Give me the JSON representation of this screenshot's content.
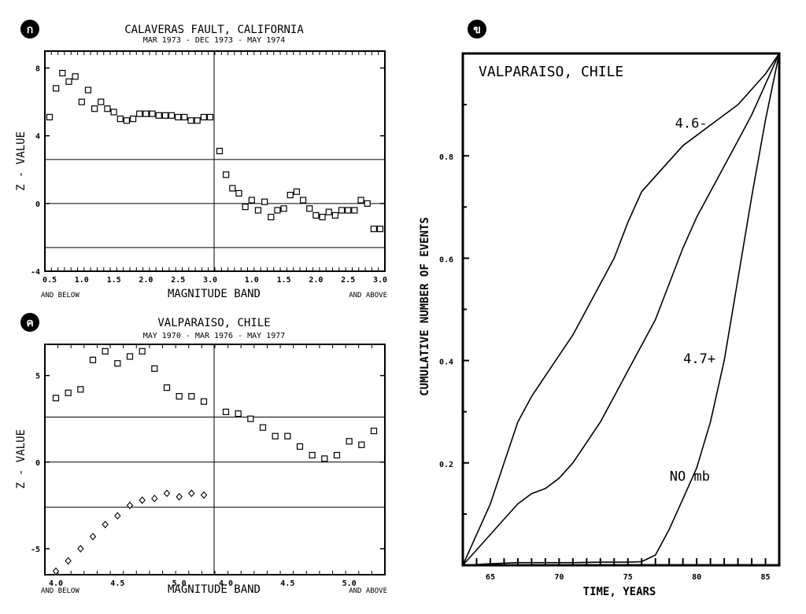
{
  "figure": {
    "panels": [
      {
        "badge": "ก",
        "title": "CALAVERAS FAULT, CALIFORNIA",
        "subtitle": "MAR 1973 - DEC 1973 - MAY 1974",
        "ylabel": "Z - VALUE",
        "xlabel": "MAGNITUDE BAND",
        "note_left": "AND BELOW",
        "note_right": "AND ABOVE"
      },
      {
        "badge": "ค",
        "title": "VALPARAISO, CHILE",
        "subtitle": "MAY 1970 - MAR 1976 - MAY 1977",
        "ylabel": "Z - VALUE",
        "xlabel": "MAGNITUDE BAND",
        "note_left": "AND BELOW",
        "note_right": "AND ABOVE"
      },
      {
        "badge": "ข",
        "title": "VALPARAISO, CHILE",
        "ylabel": "CUMULATIVE NUMBER OF EVENTS",
        "xlabel": "TIME, YEARS"
      }
    ]
  },
  "chart_data": [
    {
      "type": "scatter",
      "panel": "ก",
      "title": "CALAVERAS FAULT, CALIFORNIA",
      "subtitle": "MAR 1973 - DEC 1973 - MAY 1974",
      "xlabel": "MAGNITUDE BAND",
      "ylabel": "Z - VALUE",
      "ylim": [
        -4,
        9
      ],
      "yticks": [
        -4,
        0,
        4,
        8
      ],
      "grid": false,
      "reference_lines_y": [
        2.6,
        0,
        -2.6
      ],
      "x_ticks_left": [
        "0.5",
        "1.0",
        "1.5",
        "2.0",
        "2.5",
        "3.0"
      ],
      "x_ticks_right": [
        "1.0",
        "1.5",
        "2.0",
        "2.5",
        "3.0"
      ],
      "left_note": "AND BELOW",
      "right_note": "AND ABOVE",
      "series": [
        {
          "marker": "square",
          "segment": "left",
          "x": [
            0.5,
            0.6,
            0.7,
            0.8,
            0.9,
            1.0,
            1.1,
            1.2,
            1.3,
            1.4,
            1.5,
            1.6,
            1.7,
            1.8,
            1.9,
            2.0,
            2.1,
            2.2,
            2.3,
            2.4,
            2.5,
            2.6,
            2.7,
            2.8,
            2.9,
            3.0
          ],
          "values": [
            5.1,
            6.8,
            7.7,
            7.2,
            7.5,
            6.0,
            6.7,
            5.6,
            6.0,
            5.6,
            5.4,
            5.0,
            4.9,
            5.0,
            5.3,
            5.3,
            5.3,
            5.2,
            5.2,
            5.2,
            5.1,
            5.1,
            4.9,
            4.9,
            5.1,
            5.1
          ]
        },
        {
          "marker": "square",
          "segment": "right",
          "x": [
            0.5,
            0.6,
            0.7,
            0.8,
            0.9,
            1.0,
            1.1,
            1.2,
            1.3,
            1.4,
            1.5,
            1.6,
            1.7,
            1.8,
            1.9,
            2.0,
            2.1,
            2.2,
            2.3,
            2.4,
            2.5,
            2.6,
            2.7,
            2.8,
            2.9,
            3.0
          ],
          "values": [
            3.1,
            1.7,
            0.9,
            0.6,
            -0.2,
            0.2,
            -0.4,
            0.1,
            -0.8,
            -0.4,
            -0.3,
            0.5,
            0.7,
            0.2,
            -0.3,
            -0.7,
            -0.8,
            -0.5,
            -0.7,
            -0.4,
            -0.4,
            -0.4,
            0.2,
            0.0,
            -1.5,
            -1.5
          ]
        }
      ]
    },
    {
      "type": "scatter",
      "panel": "ค",
      "title": "VALPARAISO, CHILE",
      "subtitle": "MAY 1970 - MAR 1976 - MAY 1977",
      "xlabel": "MAGNITUDE BAND",
      "ylabel": "Z - VALUE",
      "ylim": [
        -6.5,
        6.8
      ],
      "yticks": [
        -5,
        0,
        5
      ],
      "grid": false,
      "reference_lines_y": [
        2.6,
        0,
        -2.6
      ],
      "x_ticks_left": [
        "4.0",
        "4.5",
        "5.0"
      ],
      "x_ticks_right": [
        "4.0",
        "4.5",
        "5.0"
      ],
      "left_note": "AND BELOW",
      "right_note": "AND ABOVE",
      "series": [
        {
          "marker": "square",
          "segment": "left",
          "x": [
            4.0,
            4.1,
            4.2,
            4.3,
            4.4,
            4.5,
            4.6,
            4.7,
            4.8,
            4.9,
            5.0,
            5.1,
            5.2
          ],
          "values": [
            3.7,
            4.0,
            4.2,
            5.9,
            6.4,
            5.7,
            6.1,
            6.4,
            5.4,
            4.3,
            3.8,
            3.8,
            3.5
          ]
        },
        {
          "marker": "square",
          "segment": "right",
          "x": [
            4.0,
            4.1,
            4.2,
            4.3,
            4.4,
            4.5,
            4.6,
            4.7,
            4.8,
            4.9,
            5.0,
            5.1,
            5.2
          ],
          "values": [
            2.9,
            2.8,
            2.5,
            2.0,
            1.5,
            1.5,
            0.9,
            0.4,
            0.2,
            0.4,
            1.2,
            1.0,
            1.8
          ]
        },
        {
          "marker": "diamond",
          "segment": "left",
          "x": [
            4.0,
            4.1,
            4.2,
            4.3,
            4.4,
            4.5,
            4.6,
            4.7,
            4.8,
            4.9,
            5.0,
            5.1,
            5.2
          ],
          "values": [
            -6.3,
            -5.7,
            -5.0,
            -4.3,
            -3.6,
            -3.1,
            -2.5,
            -2.2,
            -2.1,
            -1.8,
            -2.0,
            -1.8,
            -1.9
          ]
        }
      ]
    },
    {
      "type": "line",
      "panel": "ข",
      "title": "VALPARAISO, CHILE",
      "xlabel": "TIME, YEARS",
      "ylabel": "CUMULATIVE NUMBER OF EVENTS",
      "xlim": [
        63,
        86
      ],
      "ylim": [
        0,
        1
      ],
      "xticks": [
        65,
        70,
        75,
        80,
        85
      ],
      "yticks": [
        0.2,
        0.4,
        0.6,
        0.8
      ],
      "grid": false,
      "series": [
        {
          "name": "4.6-",
          "x": [
            63,
            64,
            65,
            66,
            67,
            68,
            69,
            70,
            71,
            72,
            73,
            74,
            75,
            76,
            77,
            78,
            79,
            80,
            81,
            82,
            83,
            84,
            85,
            86
          ],
          "values": [
            0,
            0.06,
            0.12,
            0.2,
            0.28,
            0.33,
            0.37,
            0.41,
            0.45,
            0.5,
            0.55,
            0.6,
            0.67,
            0.73,
            0.76,
            0.79,
            0.82,
            0.84,
            0.86,
            0.88,
            0.9,
            0.93,
            0.96,
            1.0
          ]
        },
        {
          "name": "4.7+",
          "x": [
            63,
            64,
            65,
            66,
            67,
            68,
            69,
            70,
            71,
            72,
            73,
            74,
            75,
            76,
            77,
            78,
            79,
            80,
            81,
            82,
            83,
            84,
            85,
            86
          ],
          "values": [
            0,
            0.03,
            0.06,
            0.09,
            0.12,
            0.14,
            0.15,
            0.17,
            0.2,
            0.24,
            0.28,
            0.33,
            0.38,
            0.43,
            0.48,
            0.55,
            0.62,
            0.68,
            0.73,
            0.78,
            0.83,
            0.88,
            0.94,
            1.0
          ]
        },
        {
          "name": "NO mb",
          "x": [
            63,
            65,
            67,
            69,
            71,
            73,
            75,
            76,
            77,
            78,
            79,
            80,
            81,
            82,
            83,
            84,
            85,
            86
          ],
          "values": [
            0,
            0.003,
            0.005,
            0.005,
            0.005,
            0.006,
            0.006,
            0.007,
            0.02,
            0.07,
            0.13,
            0.19,
            0.28,
            0.4,
            0.56,
            0.72,
            0.87,
            1.0
          ]
        }
      ]
    }
  ]
}
